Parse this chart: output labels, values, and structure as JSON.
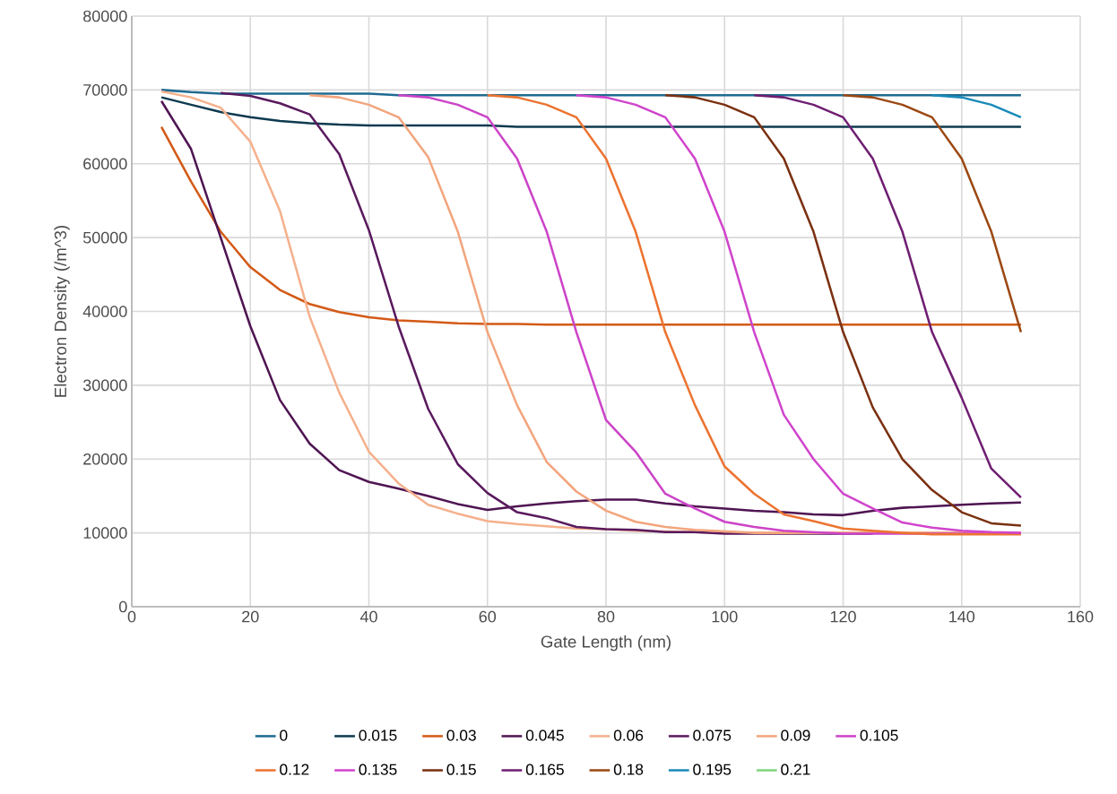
{
  "chart_data": {
    "type": "line",
    "xlabel": "Gate Length (nm)",
    "ylabel": "Electron Density (/m^3)",
    "x": [
      5,
      10,
      15,
      20,
      25,
      30,
      35,
      40,
      45,
      50,
      55,
      60,
      65,
      70,
      75,
      80,
      85,
      90,
      95,
      100,
      105,
      110,
      115,
      120,
      125,
      130,
      135,
      140,
      145,
      150
    ],
    "xlim": [
      0,
      160
    ],
    "xticks": [
      0,
      20,
      40,
      60,
      80,
      100,
      120,
      140,
      160
    ],
    "ylim": [
      0,
      80000
    ],
    "yticks": [
      0,
      10000,
      20000,
      30000,
      40000,
      50000,
      60000,
      70000,
      80000
    ],
    "grid": true,
    "legend": "bottom",
    "marker": "none",
    "line_style": "solid",
    "series": [
      {
        "name": "0",
        "color": "#1f6b91",
        "values": [
          70000,
          69700,
          69500,
          69500,
          69500,
          69500,
          69500,
          69500,
          69300,
          69300,
          69300,
          69300,
          69300,
          69300,
          69300,
          69300,
          69300,
          69300,
          69300,
          69300,
          69300,
          69300,
          69300,
          69300,
          69300,
          69300,
          69300,
          69300,
          69300,
          69300
        ]
      },
      {
        "name": "0.015",
        "color": "#0e3a4f",
        "values": [
          69000,
          68000,
          67000,
          66300,
          65800,
          65500,
          65300,
          65200,
          65200,
          65200,
          65200,
          65200,
          65000,
          65000,
          65000,
          65000,
          65000,
          65000,
          65000,
          65000,
          65000,
          65000,
          65000,
          65000,
          65000,
          65000,
          65000,
          65000,
          65000,
          65000
        ]
      },
      {
        "name": "0.03",
        "color": "#d35a17",
        "values": [
          65000,
          57600,
          50800,
          46000,
          42900,
          41000,
          39900,
          39200,
          38800,
          38600,
          38400,
          38300,
          38300,
          38200,
          38200,
          38200,
          38200,
          38200,
          38200,
          38200,
          38200,
          38200,
          38200,
          38200,
          38200,
          38200,
          38200,
          38200,
          38200,
          38200
        ]
      },
      {
        "name": "0.045",
        "color": "#4f1552",
        "values": [
          68500,
          62000,
          50000,
          38000,
          28000,
          22100,
          18500,
          16900,
          16000,
          15000,
          13900,
          13100,
          13600,
          14000,
          14300,
          14500,
          14500,
          14000,
          13600,
          13300,
          13000,
          12800,
          12500,
          12400,
          13000,
          13400,
          13600,
          13800,
          14000,
          14100
        ]
      },
      {
        "name": "0.06",
        "color": "#f5b08c",
        "values": [
          69800,
          69000,
          67600,
          63000,
          53600,
          39300,
          29000,
          21000,
          16700,
          13800,
          12600,
          11600,
          11200,
          10900,
          10600,
          10500,
          10300,
          10200,
          10100,
          10000,
          10000,
          10000,
          10000,
          10000,
          10000,
          10000,
          10000,
          10000,
          10000,
          10000
        ]
      },
      {
        "name": "0.075",
        "color": "#5a1a5e",
        "values": [
          null,
          null,
          69600,
          69200,
          68200,
          66700,
          61300,
          51000,
          38000,
          26800,
          19300,
          15400,
          12800,
          12000,
          10800,
          10500,
          10400,
          10100,
          10100,
          9900,
          9900,
          9900,
          9900,
          9900,
          9900,
          null,
          null,
          null,
          null,
          null
        ]
      },
      {
        "name": "0.09",
        "color": "#f2a57d",
        "values": [
          null,
          null,
          null,
          null,
          null,
          69300,
          69000,
          68000,
          66300,
          60900,
          50800,
          37200,
          27300,
          19600,
          15600,
          13000,
          11500,
          10800,
          10400,
          10200,
          10000,
          10000,
          10000,
          10000,
          10000,
          10000,
          10000,
          10000,
          10000,
          10000
        ]
      },
      {
        "name": "0.105",
        "color": "#cc44c8",
        "values": [
          null,
          null,
          null,
          null,
          null,
          null,
          null,
          null,
          69300,
          69000,
          68000,
          66300,
          60700,
          50800,
          37200,
          25300,
          21000,
          15300,
          13300,
          11500,
          10800,
          10300,
          10100,
          9900,
          9900,
          9900,
          9900,
          9900,
          9900,
          9900
        ]
      },
      {
        "name": "0.12",
        "color": "#ec7330",
        "values": [
          null,
          null,
          null,
          null,
          null,
          null,
          null,
          null,
          null,
          null,
          null,
          69300,
          69000,
          68000,
          66300,
          60700,
          50800,
          37200,
          27300,
          19000,
          15300,
          12500,
          11600,
          10600,
          10300,
          10000,
          9800,
          9800,
          9800,
          9800
        ]
      },
      {
        "name": "0.135",
        "color": "#d044cc",
        "values": [
          null,
          null,
          null,
          null,
          null,
          null,
          null,
          null,
          null,
          null,
          null,
          null,
          null,
          null,
          69300,
          69000,
          68000,
          66300,
          60700,
          50800,
          37200,
          26000,
          20000,
          15300,
          13300,
          11400,
          10700,
          10300,
          10100,
          10000
        ]
      },
      {
        "name": "0.15",
        "color": "#7a3010",
        "values": [
          null,
          null,
          null,
          null,
          null,
          null,
          null,
          null,
          null,
          null,
          null,
          null,
          null,
          null,
          null,
          null,
          null,
          69300,
          69000,
          68000,
          66300,
          60700,
          50800,
          37200,
          27000,
          20000,
          15800,
          12800,
          11300,
          11000
        ]
      },
      {
        "name": "0.165",
        "color": "#6f1e72",
        "values": [
          null,
          null,
          null,
          null,
          null,
          null,
          null,
          null,
          null,
          null,
          null,
          null,
          null,
          null,
          null,
          null,
          null,
          null,
          null,
          null,
          69300,
          69000,
          68000,
          66300,
          60700,
          50800,
          37200,
          28300,
          18700,
          14800
        ]
      },
      {
        "name": "0.18",
        "color": "#9c4812",
        "values": [
          null,
          null,
          null,
          null,
          null,
          null,
          null,
          null,
          null,
          null,
          null,
          null,
          null,
          null,
          null,
          null,
          null,
          null,
          null,
          null,
          null,
          null,
          null,
          69300,
          69000,
          68000,
          66300,
          60700,
          50800,
          37200
        ]
      },
      {
        "name": "0.195",
        "color": "#1a8ab8",
        "values": [
          null,
          null,
          null,
          null,
          null,
          null,
          null,
          null,
          null,
          null,
          null,
          null,
          null,
          null,
          null,
          null,
          null,
          null,
          null,
          null,
          null,
          null,
          null,
          null,
          null,
          null,
          69300,
          69000,
          68000,
          66300
        ]
      },
      {
        "name": "0.21",
        "color": "#7ed67a",
        "values": [
          null,
          null,
          null,
          null,
          null,
          null,
          null,
          null,
          null,
          null,
          null,
          null,
          null,
          null,
          null,
          null,
          null,
          null,
          null,
          null,
          null,
          null,
          null,
          null,
          null,
          null,
          null,
          null,
          null,
          null
        ]
      }
    ]
  }
}
